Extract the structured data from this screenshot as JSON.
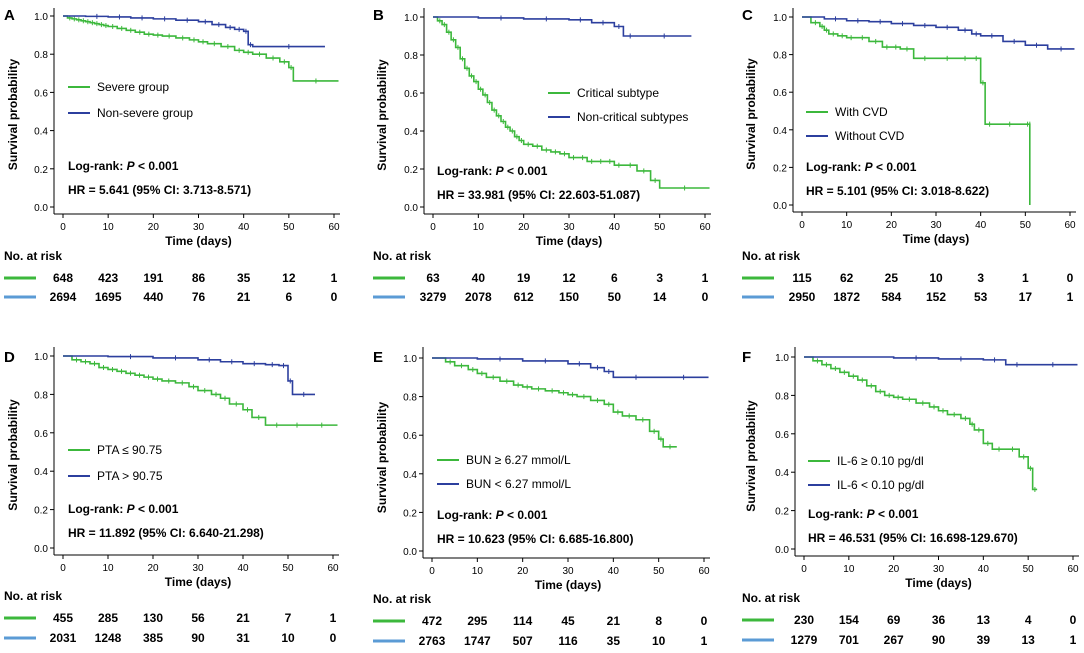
{
  "figure": {
    "axis_common": {
      "xlabel": "Time (days)",
      "ylabel": "Survival probability",
      "xticks": [
        0,
        10,
        20,
        30,
        40,
        50,
        60
      ],
      "yticks": [
        "0.0",
        "0.2",
        "0.4",
        "0.6",
        "0.8",
        "1.0"
      ],
      "risk_title": "No. at risk"
    },
    "colors": {
      "green": "#3cb83c",
      "blue": "#2c3f9e",
      "risk_blue": "#5b9bd5"
    }
  },
  "chart_data": [
    {
      "panel": "A",
      "type": "line",
      "title": "",
      "xlabel": "Time (days)",
      "ylabel": "Survival probability",
      "xlim": [
        0,
        60
      ],
      "ylim": [
        0,
        1
      ],
      "series": [
        {
          "name": "Severe group",
          "color": "#3cb83c",
          "x": [
            0,
            1,
            2,
            3,
            4,
            5,
            6,
            7,
            8,
            9,
            10,
            12,
            14,
            16,
            18,
            20,
            22,
            25,
            28,
            30,
            32,
            35,
            38,
            40,
            42,
            45,
            48,
            50,
            51,
            61
          ],
          "y": [
            1,
            0.99,
            0.985,
            0.98,
            0.975,
            0.97,
            0.965,
            0.96,
            0.955,
            0.95,
            0.945,
            0.935,
            0.925,
            0.915,
            0.905,
            0.9,
            0.895,
            0.885,
            0.875,
            0.865,
            0.855,
            0.84,
            0.82,
            0.81,
            0.8,
            0.78,
            0.76,
            0.73,
            0.66,
            0.66
          ]
        },
        {
          "name": "Non-severe group",
          "color": "#2c3f9e",
          "x": [
            0,
            5,
            10,
            15,
            20,
            25,
            30,
            33,
            36,
            38,
            40,
            41,
            42,
            58
          ],
          "y": [
            1,
            0.998,
            0.995,
            0.99,
            0.985,
            0.978,
            0.97,
            0.955,
            0.94,
            0.93,
            0.92,
            0.85,
            0.84,
            0.84
          ]
        }
      ],
      "legend": [
        "Severe group",
        "Non-severe group"
      ],
      "annotations": [
        "Log-rank: P < 0.001",
        "HR = 5.641 (95% CI: 3.713-8.571)"
      ],
      "risk_table": {
        "title": "No. at risk",
        "rows": [
          {
            "group": "Severe group",
            "values": [
              "648",
              "423",
              "191",
              "86",
              "35",
              "12",
              "1"
            ]
          },
          {
            "group": "Non-severe group",
            "values": [
              "2694",
              "1695",
              "440",
              "76",
              "21",
              "6",
              "0"
            ]
          }
        ]
      }
    },
    {
      "panel": "B",
      "type": "line",
      "title": "",
      "xlabel": "Time (days)",
      "ylabel": "Survival probability",
      "xlim": [
        0,
        60
      ],
      "ylim": [
        0,
        1
      ],
      "series": [
        {
          "name": "Critical subtype",
          "color": "#3cb83c",
          "x": [
            0,
            1,
            2,
            3,
            4,
            5,
            6,
            7,
            8,
            9,
            10,
            11,
            12,
            13,
            14,
            15,
            16,
            17,
            18,
            19,
            20,
            22,
            24,
            26,
            28,
            30,
            32,
            34,
            36,
            38,
            40,
            42,
            45,
            48,
            50,
            61
          ],
          "y": [
            1,
            0.98,
            0.96,
            0.92,
            0.88,
            0.84,
            0.78,
            0.73,
            0.69,
            0.66,
            0.62,
            0.59,
            0.55,
            0.51,
            0.48,
            0.45,
            0.42,
            0.4,
            0.37,
            0.35,
            0.33,
            0.32,
            0.3,
            0.29,
            0.28,
            0.26,
            0.26,
            0.24,
            0.24,
            0.24,
            0.22,
            0.22,
            0.19,
            0.14,
            0.1,
            0.1
          ]
        },
        {
          "name": "Non-critical subtypes",
          "color": "#2c3f9e",
          "x": [
            0,
            10,
            20,
            30,
            35,
            40,
            42,
            45,
            57
          ],
          "y": [
            1,
            0.995,
            0.99,
            0.985,
            0.97,
            0.95,
            0.9,
            0.9,
            0.9
          ]
        }
      ],
      "legend": [
        "Critical subtype",
        "Non-critical subtypes"
      ],
      "annotations": [
        "Log-rank: P < 0.001",
        "HR = 33.981 (95% CI: 22.603-51.087)"
      ],
      "risk_table": {
        "title": "No. at risk",
        "rows": [
          {
            "group": "Critical subtype",
            "values": [
              "63",
              "40",
              "19",
              "12",
              "6",
              "3",
              "1"
            ]
          },
          {
            "group": "Non-critical subtypes",
            "values": [
              "3279",
              "2078",
              "612",
              "150",
              "50",
              "14",
              "0"
            ]
          }
        ]
      }
    },
    {
      "panel": "C",
      "type": "line",
      "title": "",
      "xlabel": "Time (days)",
      "ylabel": "Survival probability",
      "xlim": [
        0,
        60
      ],
      "ylim": [
        0,
        1
      ],
      "series": [
        {
          "name": "With CVD",
          "color": "#3cb83c",
          "x": [
            0,
            2,
            4,
            5,
            6,
            8,
            10,
            12,
            15,
            18,
            20,
            22,
            25,
            30,
            35,
            38,
            40,
            41,
            43,
            50,
            51,
            51
          ],
          "y": [
            1,
            0.97,
            0.95,
            0.93,
            0.91,
            0.9,
            0.89,
            0.89,
            0.87,
            0.84,
            0.84,
            0.83,
            0.78,
            0.78,
            0.78,
            0.78,
            0.65,
            0.43,
            0.43,
            0.43,
            0.43,
            0
          ]
        },
        {
          "name": "Without CVD",
          "color": "#2c3f9e",
          "x": [
            0,
            5,
            10,
            15,
            20,
            25,
            30,
            35,
            38,
            40,
            45,
            50,
            55,
            61
          ],
          "y": [
            1,
            0.99,
            0.98,
            0.975,
            0.965,
            0.955,
            0.945,
            0.93,
            0.91,
            0.9,
            0.87,
            0.85,
            0.83,
            0.83
          ]
        }
      ],
      "legend": [
        "With CVD",
        "Without CVD"
      ],
      "annotations": [
        "Log-rank: P < 0.001",
        "HR = 5.101 (95% CI: 3.018-8.622)"
      ],
      "risk_table": {
        "title": "No. at risk",
        "rows": [
          {
            "group": "With CVD",
            "values": [
              "115",
              "62",
              "25",
              "10",
              "3",
              "1",
              "0"
            ]
          },
          {
            "group": "Without CVD",
            "values": [
              "2950",
              "1872",
              "584",
              "152",
              "53",
              "17",
              "1"
            ]
          }
        ]
      }
    },
    {
      "panel": "D",
      "type": "line",
      "title": "",
      "xlabel": "Time (days)",
      "ylabel": "Survival probability",
      "xlim": [
        0,
        60
      ],
      "ylim": [
        0,
        1
      ],
      "series": [
        {
          "name": "PTA ≤ 90.75",
          "color": "#3cb83c",
          "x": [
            0,
            2,
            4,
            6,
            8,
            10,
            12,
            14,
            16,
            18,
            20,
            22,
            25,
            28,
            30,
            33,
            35,
            37,
            40,
            42,
            45,
            50,
            54,
            61
          ],
          "y": [
            1,
            0.98,
            0.97,
            0.96,
            0.94,
            0.93,
            0.92,
            0.91,
            0.9,
            0.89,
            0.88,
            0.87,
            0.86,
            0.84,
            0.82,
            0.8,
            0.78,
            0.75,
            0.72,
            0.68,
            0.64,
            0.64,
            0.64,
            0.64
          ]
        },
        {
          "name": "PTA > 90.75",
          "color": "#2c3f9e",
          "x": [
            0,
            10,
            20,
            30,
            35,
            40,
            45,
            48,
            50,
            51,
            56
          ],
          "y": [
            1,
            0.997,
            0.99,
            0.98,
            0.97,
            0.96,
            0.955,
            0.95,
            0.87,
            0.8,
            0.8
          ]
        }
      ],
      "legend": [
        "PTA ≤ 90.75",
        "PTA > 90.75"
      ],
      "annotations": [
        "Log-rank: P < 0.001",
        "HR = 11.892 (95% CI: 6.640-21.298)"
      ],
      "risk_table": {
        "title": "No. at risk",
        "rows": [
          {
            "group": "PTA ≤ 90.75",
            "values": [
              "455",
              "285",
              "130",
              "56",
              "21",
              "7",
              "1"
            ]
          },
          {
            "group": "PTA > 90.75",
            "values": [
              "2031",
              "1248",
              "385",
              "90",
              "31",
              "10",
              "0"
            ]
          }
        ]
      }
    },
    {
      "panel": "E",
      "type": "line",
      "title": "",
      "xlabel": "Time (days)",
      "ylabel": "Survival probability",
      "xlim": [
        0,
        60
      ],
      "ylim": [
        0,
        1
      ],
      "series": [
        {
          "name": "BUN ≥ 6.27 mmol/L",
          "color": "#3cb83c",
          "x": [
            0,
            3,
            5,
            8,
            10,
            12,
            15,
            18,
            20,
            22,
            25,
            28,
            30,
            32,
            35,
            38,
            40,
            42,
            45,
            48,
            50,
            51,
            54
          ],
          "y": [
            1,
            0.98,
            0.96,
            0.94,
            0.92,
            0.9,
            0.88,
            0.86,
            0.85,
            0.84,
            0.83,
            0.82,
            0.81,
            0.8,
            0.78,
            0.76,
            0.72,
            0.7,
            0.68,
            0.62,
            0.58,
            0.54,
            0.54
          ]
        },
        {
          "name": "BUN < 6.27 mmol/L",
          "color": "#2c3f9e",
          "x": [
            0,
            10,
            20,
            30,
            35,
            38,
            40,
            50,
            61
          ],
          "y": [
            1,
            0.995,
            0.985,
            0.97,
            0.95,
            0.93,
            0.9,
            0.9,
            0.9
          ]
        }
      ],
      "legend": [
        "BUN ≥ 6.27 mmol/L",
        "BUN < 6.27 mmol/L"
      ],
      "annotations": [
        "Log-rank: P < 0.001",
        "HR = 10.623 (95% CI: 6.685-16.800)"
      ],
      "risk_table": {
        "title": "No. at risk",
        "rows": [
          {
            "group": "BUN ≥ 6.27 mmol/L",
            "values": [
              "472",
              "295",
              "114",
              "45",
              "21",
              "8",
              "0"
            ]
          },
          {
            "group": "BUN < 6.27 mmol/L",
            "values": [
              "2763",
              "1747",
              "507",
              "116",
              "35",
              "10",
              "1"
            ]
          }
        ]
      }
    },
    {
      "panel": "F",
      "type": "line",
      "title": "",
      "xlabel": "Time (days)",
      "ylabel": "Survival probability",
      "xlim": [
        0,
        60
      ],
      "ylim": [
        0,
        1
      ],
      "series": [
        {
          "name": "IL-6 ≥ 0.10 pg/dl",
          "color": "#3cb83c",
          "x": [
            0,
            2,
            4,
            6,
            8,
            10,
            12,
            14,
            16,
            18,
            20,
            22,
            25,
            28,
            30,
            32,
            35,
            37,
            38,
            40,
            42,
            45,
            48,
            50,
            51,
            52
          ],
          "y": [
            1,
            0.98,
            0.96,
            0.94,
            0.92,
            0.9,
            0.88,
            0.85,
            0.82,
            0.8,
            0.79,
            0.78,
            0.76,
            0.74,
            0.72,
            0.7,
            0.68,
            0.65,
            0.62,
            0.55,
            0.52,
            0.52,
            0.48,
            0.42,
            0.31,
            0.31
          ]
        },
        {
          "name": "IL-6 < 0.10 pg/dl",
          "color": "#2c3f9e",
          "x": [
            0,
            20,
            30,
            40,
            45,
            50,
            61
          ],
          "y": [
            1,
            0.995,
            0.99,
            0.985,
            0.96,
            0.96,
            0.96
          ]
        }
      ],
      "legend": [
        "IL-6 ≥ 0.10 pg/dl",
        "IL-6 < 0.10 pg/dl"
      ],
      "annotations": [
        "Log-rank: P < 0.001",
        "HR = 46.531 (95% CI: 16.698-129.670)"
      ],
      "risk_table": {
        "title": "No. at risk",
        "rows": [
          {
            "group": "IL-6 ≥ 0.10 pg/dl",
            "values": [
              "230",
              "154",
              "69",
              "36",
              "13",
              "4",
              "0"
            ]
          },
          {
            "group": "IL-6 < 0.10 pg/dl",
            "values": [
              "1279",
              "701",
              "267",
              "90",
              "39",
              "13",
              "1"
            ]
          }
        ]
      }
    }
  ]
}
